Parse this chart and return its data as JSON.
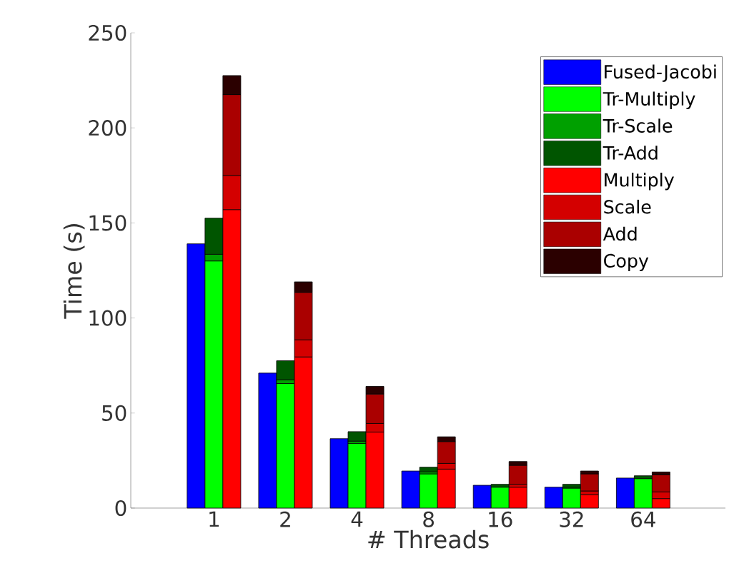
{
  "chart_data": {
    "type": "bar",
    "stacked": true,
    "xlabel": "# Threads",
    "ylabel": "Time (s)",
    "categories": [
      null,
      "1",
      null,
      null,
      null,
      "2",
      null,
      null,
      null,
      "4",
      null,
      null,
      null,
      "8",
      null,
      null,
      null,
      "16",
      null,
      null,
      null,
      "32",
      null,
      null,
      null,
      "64",
      null
    ],
    "ylim": [
      0,
      250
    ],
    "yticks": [
      0,
      50,
      100,
      150,
      200,
      250
    ],
    "grid": false,
    "legend": "top right",
    "series": [
      {
        "name": "Fused-Jacobi",
        "color": "#0000ff",
        "values": [
          139,
          null,
          null,
          null,
          71,
          null,
          null,
          null,
          36.5,
          null,
          null,
          null,
          19.5,
          null,
          null,
          null,
          12,
          null,
          null,
          null,
          11,
          null,
          null,
          null,
          15.8,
          null,
          null
        ]
      },
      {
        "name": "Tr-Multiply",
        "color": "#00ff00",
        "values": [
          null,
          130,
          null,
          null,
          null,
          65.5,
          null,
          null,
          null,
          34,
          null,
          null,
          null,
          18,
          null,
          null,
          null,
          11,
          null,
          null,
          null,
          10.5,
          null,
          null,
          null,
          15.5,
          null
        ]
      },
      {
        "name": "Tr-Scale",
        "color": "#00a000",
        "values": [
          null,
          3.5,
          null,
          null,
          null,
          2,
          null,
          null,
          null,
          1.2,
          null,
          null,
          null,
          1,
          null,
          null,
          null,
          null,
          null,
          null,
          null,
          0.5,
          null,
          null,
          null,
          null,
          null
        ]
      },
      {
        "name": "Tr-Add",
        "color": "#005500",
        "values": [
          null,
          19,
          null,
          null,
          null,
          10,
          null,
          null,
          null,
          5,
          null,
          null,
          null,
          2.5,
          null,
          null,
          null,
          1.5,
          null,
          null,
          null,
          1.5,
          null,
          null,
          null,
          1.5,
          null
        ]
      },
      {
        "name": "Multiply",
        "color": "#ff0000",
        "values": [
          null,
          null,
          157,
          null,
          null,
          null,
          79.5,
          null,
          null,
          null,
          40,
          null,
          null,
          null,
          20.5,
          null,
          null,
          null,
          11,
          null,
          null,
          null,
          7,
          null,
          null,
          null,
          5
        ]
      },
      {
        "name": "Scale",
        "color": "#d40000",
        "values": [
          null,
          null,
          18,
          null,
          null,
          null,
          9,
          null,
          null,
          null,
          4.5,
          null,
          null,
          null,
          3,
          null,
          null,
          null,
          1.5,
          null,
          null,
          null,
          2,
          null,
          null,
          null,
          3.5
        ]
      },
      {
        "name": "Add",
        "color": "#aa0000",
        "values": [
          null,
          null,
          42.5,
          null,
          null,
          null,
          25,
          null,
          null,
          null,
          15.5,
          null,
          null,
          null,
          11.5,
          null,
          null,
          null,
          10,
          null,
          null,
          null,
          9,
          null,
          null,
          null,
          9
        ]
      },
      {
        "name": "Copy",
        "color": "#2b0000",
        "values": [
          null,
          null,
          10,
          null,
          null,
          null,
          5.5,
          null,
          null,
          null,
          4,
          null,
          null,
          null,
          2.5,
          null,
          null,
          null,
          2,
          null,
          null,
          null,
          1.5,
          null,
          null,
          null,
          1.5
        ]
      }
    ]
  }
}
